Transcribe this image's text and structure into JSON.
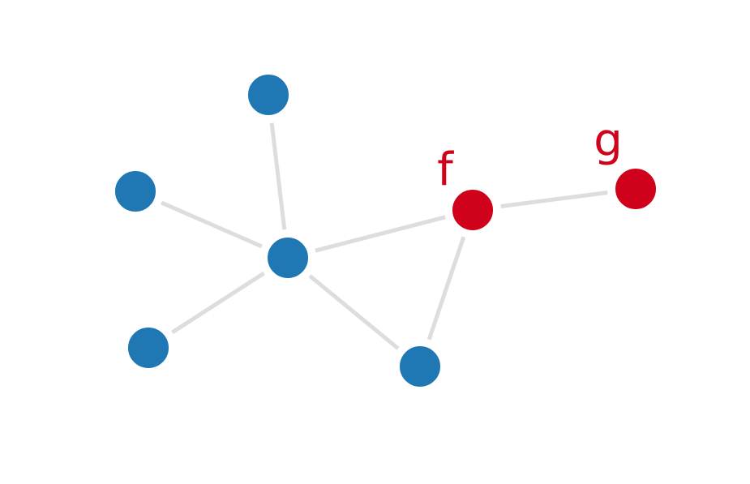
{
  "graph": {
    "nodes": [
      {
        "id": "hub",
        "label": "",
        "color": "#1f77b4"
      },
      {
        "id": "top",
        "label": "",
        "color": "#1f77b4"
      },
      {
        "id": "left",
        "label": "",
        "color": "#1f77b4"
      },
      {
        "id": "bottom-left",
        "label": "",
        "color": "#1f77b4"
      },
      {
        "id": "bottom",
        "label": "",
        "color": "#1f77b4"
      },
      {
        "id": "f",
        "label": "f",
        "color": "#d0021b"
      },
      {
        "id": "g",
        "label": "g",
        "color": "#d0021b"
      }
    ],
    "edges": [
      {
        "from": "hub",
        "to": "top"
      },
      {
        "from": "hub",
        "to": "left"
      },
      {
        "from": "hub",
        "to": "bottom-left"
      },
      {
        "from": "hub",
        "to": "bottom"
      },
      {
        "from": "hub",
        "to": "f"
      },
      {
        "from": "f",
        "to": "bottom"
      },
      {
        "from": "f",
        "to": "g"
      }
    ],
    "colors": {
      "edge": "#dddddd",
      "default_node": "#1f77b4",
      "highlight_node": "#d0021b",
      "highlight_label": "#d0021b"
    }
  }
}
